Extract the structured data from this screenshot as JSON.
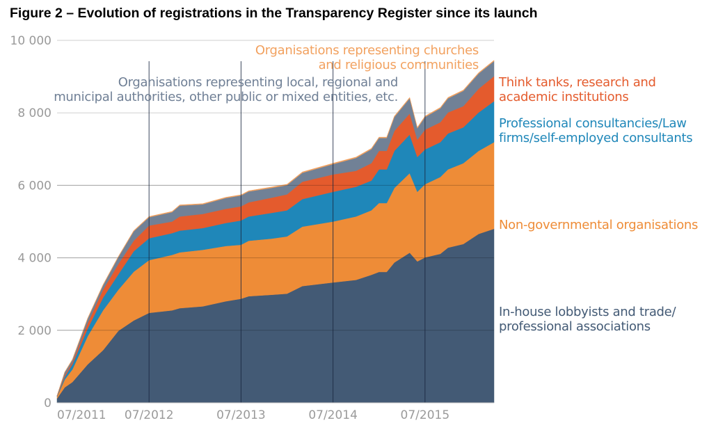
{
  "title": "Figure 2 – Evolution of registrations in the Transparency Register since its launch",
  "chart_data": {
    "type": "area",
    "stacked": true,
    "title": "Figure 2 – Evolution of registrations in the Transparency Register since its launch",
    "xlabel": "",
    "ylabel": "",
    "ylim": [
      0,
      10000
    ],
    "yticks": [
      "0",
      "2 000",
      "4 000",
      "6 000",
      "8 000",
      "10 000"
    ],
    "ytick_values": [
      0,
      2000,
      4000,
      6000,
      8000,
      10000
    ],
    "xticks": [
      "07/2011",
      "07/2012",
      "07/2013",
      "07/2014",
      "07/2015"
    ],
    "xtick_values": [
      "2011-07",
      "2012-07",
      "2013-07",
      "2014-07",
      "2015-07"
    ],
    "grid": "horizontal and vertical at ticks",
    "legend": "direct labels at right and top",
    "x": [
      "2011-07",
      "2011-08",
      "2011-09",
      "2011-11",
      "2012-01",
      "2012-03",
      "2012-05",
      "2012-07",
      "2012-10",
      "2012-11",
      "2013-02",
      "2013-05",
      "2013-07",
      "2013-08",
      "2013-11",
      "2014-01",
      "2014-03",
      "2014-07",
      "2014-10",
      "2014-12",
      "2015-01",
      "2015-02",
      "2015-03",
      "2015-05",
      "2015-06",
      "2015-07",
      "2015-09",
      "2015-10",
      "2015-12",
      "2016-02",
      "2016-04"
    ],
    "series": [
      {
        "name": "In-house lobbyists and trade/ professional associations",
        "color": "#435a75",
        "values": [
          120,
          425,
          570,
          1060,
          1450,
          1985,
          2270,
          2480,
          2550,
          2610,
          2660,
          2800,
          2870,
          2940,
          2980,
          3010,
          3220,
          3320,
          3390,
          3530,
          3610,
          3610,
          3870,
          4140,
          3900,
          4010,
          4110,
          4280,
          4380,
          4660,
          4800
        ]
      },
      {
        "name": "Non-governmental organisations",
        "color": "#ee8c37",
        "values": [
          50,
          215,
          350,
          780,
          1100,
          1135,
          1345,
          1455,
          1530,
          1540,
          1560,
          1525,
          1490,
          1530,
          1550,
          1580,
          1640,
          1680,
          1750,
          1780,
          1900,
          1900,
          2055,
          2195,
          1920,
          2020,
          2120,
          2160,
          2230,
          2290,
          2390
        ]
      },
      {
        "name": "Professional consultancies/Law firms/self-employed consultants",
        "color": "#1f87b9",
        "values": [
          15,
          70,
          140,
          210,
          350,
          425,
          565,
          605,
          600,
          600,
          600,
          635,
          670,
          670,
          710,
          720,
          760,
          820,
          820,
          820,
          930,
          930,
          1025,
          1065,
          960,
          960,
          960,
          990,
          990,
          1060,
          1130
        ]
      },
      {
        "name": "Think tanks, research and academic institutions",
        "color": "#e45b2d",
        "values": [
          10,
          50,
          60,
          150,
          220,
          285,
          290,
          350,
          320,
          390,
          390,
          390,
          390,
          390,
          420,
          440,
          480,
          480,
          440,
          480,
          510,
          510,
          550,
          580,
          480,
          545,
          550,
          580,
          585,
          655,
          690
        ]
      },
      {
        "name": "Organisations representing local, regional and municipal authorities, other public or mixed entities, etc.",
        "color": "#718196",
        "values": [
          5,
          80,
          60,
          120,
          120,
          190,
          260,
          230,
          260,
          300,
          265,
          300,
          300,
          300,
          270,
          255,
          245,
          285,
          355,
          385,
          355,
          355,
          385,
          420,
          315,
          350,
          385,
          390,
          420,
          420,
          415
        ]
      },
      {
        "name": "Organisations representing churches and religious communities",
        "color": "#f2a15f",
        "values": [
          0,
          10,
          20,
          20,
          20,
          20,
          20,
          20,
          20,
          20,
          20,
          20,
          20,
          20,
          25,
          25,
          25,
          25,
          25,
          25,
          25,
          25,
          25,
          25,
          25,
          25,
          25,
          25,
          25,
          25,
          25
        ]
      }
    ]
  },
  "labels": {
    "churches": [
      "Organisations representing churches",
      "and religious communities"
    ],
    "local": [
      "Organisations representing local, regional and",
      "municipal authorities, other public or mixed entities, etc."
    ],
    "think": [
      "Think tanks, research and",
      "academic institutions"
    ],
    "consult": [
      "Professional consultancies/Law",
      "firms/self-employed consultants"
    ],
    "ngo": [
      "Non-governmental organisations"
    ],
    "lobby": [
      "In-house lobbyists and trade/",
      "professional associations"
    ]
  },
  "colors": {
    "axis_text": "#9a9a9a",
    "grid": "#cfcfcf",
    "vgrid": "#1a2740",
    "church_label": "#f2a15f",
    "local_label": "#6f7f95",
    "think_label": "#e45b2d",
    "consult_label": "#1f87b9",
    "ngo_label": "#ee8c37",
    "lobby_label": "#435a75"
  }
}
